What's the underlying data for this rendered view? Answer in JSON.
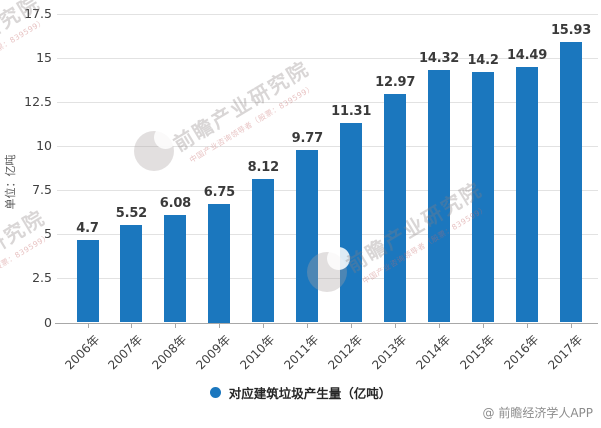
{
  "chart_data": {
    "type": "bar",
    "title": "",
    "categories": [
      "2006年",
      "2007年",
      "2008年",
      "2009年",
      "2010年",
      "2011年",
      "2012年",
      "2013年",
      "2014年",
      "2015年",
      "2016年",
      "2017年"
    ],
    "values": [
      4.7,
      5.52,
      6.08,
      6.75,
      8.12,
      9.77,
      11.31,
      12.97,
      14.32,
      14.2,
      14.49,
      15.93
    ],
    "series": [
      {
        "name": "对应建筑垃圾产生量（亿吨）",
        "values": [
          4.7,
          5.52,
          6.08,
          6.75,
          8.12,
          9.77,
          11.31,
          12.97,
          14.32,
          14.2,
          14.49,
          15.93
        ]
      }
    ],
    "xlabel": "",
    "ylabel": "单位：亿吨",
    "ylim": [
      0,
      17.5
    ],
    "yticks": [
      0,
      2.5,
      5,
      7.5,
      10,
      12.5,
      15,
      17.5
    ],
    "grid": true,
    "legend_position": "bottom",
    "value_labels": true,
    "bar_color": "#1b77be"
  },
  "legend": {
    "label": "对应建筑垃圾产生量（亿吨）",
    "marker_color": "#1b77be"
  },
  "watermark": {
    "brand": "前瞻产业研究院",
    "tagline": "中国产业咨询领导者（股票：839599）"
  },
  "footer": {
    "credit": "@ 前瞻经济学人APP"
  },
  "colors": {
    "bar": "#1b77be",
    "axis_text": "#404040",
    "value_label": "#3a3a3a",
    "gridline": "#e2e2e2",
    "axis_line": "#a8a8a8",
    "credit": "#8c8c8c"
  }
}
